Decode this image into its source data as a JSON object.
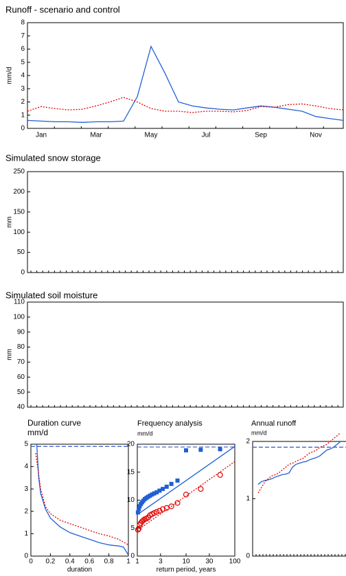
{
  "chart_data": [
    {
      "type": "line",
      "title": "Runoff - scenario and control",
      "y_label": "mm/d",
      "categories": [
        "Jan",
        null,
        null,
        null,
        "Mar",
        null,
        null,
        null,
        "May",
        null,
        null,
        null,
        "Jul",
        null,
        null,
        null,
        "Sep",
        null,
        null,
        null,
        "Nov",
        null,
        null,
        null
      ],
      "ylim": [
        0,
        8
      ],
      "yticks": [
        0,
        1,
        2,
        3,
        4,
        5,
        6,
        7,
        8
      ],
      "series": [
        {
          "color": "#1f5fd6",
          "style": "solid",
          "values": [
            0.6,
            0.55,
            0.5,
            0.5,
            0.45,
            0.5,
            0.5,
            0.55,
            2.4,
            6.2,
            4.2,
            2.0,
            1.7,
            1.55,
            1.45,
            1.4,
            1.55,
            1.7,
            1.6,
            1.45,
            1.3,
            0.9,
            0.75,
            0.6
          ]
        },
        {
          "color": "#e00000",
          "style": "dotted",
          "values": [
            1.3,
            1.65,
            1.5,
            1.4,
            1.45,
            1.7,
            2.0,
            2.35,
            2.0,
            1.5,
            1.3,
            1.3,
            1.2,
            1.3,
            1.3,
            1.25,
            1.35,
            1.65,
            1.6,
            1.8,
            1.85,
            1.7,
            1.5,
            1.4
          ]
        }
      ]
    },
    {
      "type": "line",
      "title": "Simulated snow storage",
      "y_label": "mm",
      "ylim": [
        0,
        250
      ],
      "yticks": [
        0,
        50,
        100,
        150,
        200,
        250
      ]
    },
    {
      "type": "line",
      "title": "Simulated soil moisture",
      "y_label": "mm",
      "ylim": [
        40,
        110
      ],
      "yticks": [
        40,
        50,
        60,
        70,
        80,
        90,
        100,
        110
      ]
    },
    {
      "type": "line",
      "title": "Duration curve",
      "subtitle": "mm/d",
      "x_label": "duration",
      "xlim": [
        0,
        1
      ],
      "xticks": [
        0,
        0.2,
        0.4,
        0.6,
        0.8,
        1
      ],
      "ylim": [
        0,
        5
      ],
      "yticks": [
        0,
        1,
        2,
        3,
        4,
        5
      ],
      "reference_line": {
        "value": 4.9,
        "color": "#3355cc"
      },
      "series": [
        {
          "color": "#1f5fd6",
          "style": "solid",
          "x": [
            0.06,
            0.08,
            0.1,
            0.15,
            0.2,
            0.3,
            0.4,
            0.5,
            0.6,
            0.7,
            0.8,
            0.9,
            0.95,
            1
          ],
          "values": [
            5,
            3.5,
            2.8,
            2.1,
            1.7,
            1.3,
            1.05,
            0.9,
            0.75,
            0.6,
            0.5,
            0.45,
            0.4,
            0.05
          ]
        },
        {
          "color": "#e00000",
          "style": "dotted",
          "x": [
            0.05,
            0.1,
            0.15,
            0.2,
            0.3,
            0.4,
            0.5,
            0.6,
            0.7,
            0.8,
            0.9,
            1
          ],
          "values": [
            4.6,
            3.0,
            2.2,
            1.9,
            1.6,
            1.45,
            1.3,
            1.15,
            1.0,
            0.9,
            0.75,
            0.5
          ]
        }
      ]
    },
    {
      "type": "scatter",
      "title": "Frequency analysis",
      "subtitle": "mm/d",
      "x_label": "return period, years",
      "x_scale": "log",
      "xlim": [
        1,
        100
      ],
      "xticks": [
        1,
        3,
        10,
        30,
        100
      ],
      "ylim": [
        0,
        20
      ],
      "yticks": [
        0,
        5,
        10,
        15,
        20
      ],
      "reference_line": {
        "value": 19.5,
        "color": "#3355cc"
      },
      "series": [
        {
          "color": "#1f5fd6",
          "marker": "square",
          "x": [
            1.03,
            1.07,
            1.12,
            1.18,
            1.25,
            1.33,
            1.43,
            1.54,
            1.67,
            1.82,
            2.0,
            2.22,
            2.5,
            2.86,
            3.33,
            4.0,
            5.0,
            6.67,
            10,
            20,
            50
          ],
          "values": [
            7.8,
            8.4,
            8.9,
            9.3,
            9.6,
            9.9,
            10.2,
            10.4,
            10.6,
            10.8,
            11.0,
            11.2,
            11.4,
            11.7,
            12.0,
            12.4,
            12.9,
            13.5,
            18.9,
            19.0,
            19.1
          ]
        },
        {
          "color": "#1f5fd6",
          "style": "solid",
          "x": [
            1,
            100
          ],
          "values": [
            7.4,
            19.6
          ]
        },
        {
          "color": "#e00000",
          "marker": "circle",
          "x": [
            1.03,
            1.07,
            1.12,
            1.18,
            1.25,
            1.33,
            1.43,
            1.54,
            1.67,
            1.82,
            2.0,
            2.22,
            2.5,
            2.86,
            3.33,
            4.0,
            5.0,
            6.67,
            10,
            20,
            50
          ],
          "values": [
            4.7,
            4.9,
            5.6,
            5.9,
            6.2,
            6.4,
            6.6,
            6.7,
            6.9,
            7.3,
            7.5,
            7.7,
            7.9,
            8.1,
            8.4,
            8.6,
            8.9,
            9.5,
            11.0,
            12.0,
            14.5
          ]
        },
        {
          "color": "#e00000",
          "style": "dotted",
          "x": [
            1,
            100
          ],
          "values": [
            4.6,
            16.9
          ]
        }
      ]
    },
    {
      "type": "line",
      "title": "Annual runoff",
      "subtitle": "mm/d",
      "ylim": [
        0,
        2
      ],
      "yticks": [
        0,
        1,
        2
      ],
      "reference_line": {
        "value": 1.9,
        "color": "#3355cc"
      },
      "series": [
        {
          "color": "#1f5fd6",
          "style": "solid",
          "values": [
            1.25,
            1.3,
            1.32,
            1.33,
            1.35,
            1.38,
            1.4,
            1.42,
            1.43,
            1.45,
            1.55,
            1.6,
            1.62,
            1.64,
            1.65,
            1.68,
            1.7,
            1.72,
            1.75,
            1.8,
            1.85,
            1.87,
            1.9,
            1.95,
            2.0
          ]
        },
        {
          "color": "#e00000",
          "style": "dotted",
          "values": [
            1.1,
            1.2,
            1.3,
            1.35,
            1.4,
            1.42,
            1.45,
            1.5,
            1.55,
            1.6,
            1.62,
            1.65,
            1.68,
            1.7,
            1.75,
            1.8,
            1.82,
            1.85,
            1.9,
            1.92,
            1.95,
            2.0,
            2.05,
            2.1,
            2.15
          ]
        }
      ]
    }
  ]
}
